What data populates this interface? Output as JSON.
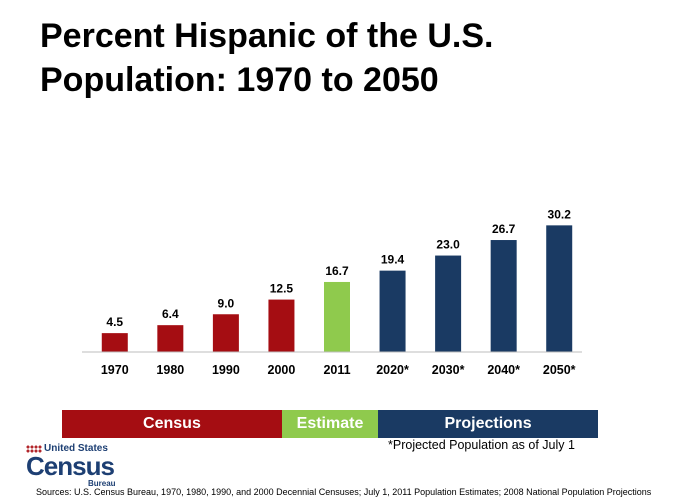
{
  "title": "Percent Hispanic of the U.S. Population: 1970 to 2050",
  "chart_data": {
    "type": "bar",
    "categories": [
      "1970",
      "1980",
      "1990",
      "2000",
      "2011",
      "2020*",
      "2030*",
      "2040*",
      "2050*"
    ],
    "values": [
      4.5,
      6.4,
      9.0,
      12.5,
      16.7,
      19.4,
      23.0,
      26.7,
      30.2
    ],
    "data_labels": [
      "4.5",
      "6.4",
      "9.0",
      "12.5",
      "16.7",
      "19.4",
      "23.0",
      "26.7",
      "30.2"
    ],
    "bar_colors": [
      "#a50d12",
      "#a50d12",
      "#a50d12",
      "#a50d12",
      "#8fca4d",
      "#1a3a63",
      "#1a3a63",
      "#1a3a63",
      "#1a3a63"
    ],
    "ylim": [
      0,
      31
    ],
    "grid": false,
    "title": "Percent Hispanic of the U.S. Population: 1970 to 2050",
    "xlabel": "",
    "ylabel": ""
  },
  "legend": [
    {
      "label": "Census",
      "color": "#a50d12",
      "span": 4
    },
    {
      "label": "Estimate",
      "color": "#8fca4d",
      "span": 1.75
    },
    {
      "label": "Projections",
      "color": "#1a3a63",
      "span": 4
    }
  ],
  "footnote": "*Projected Population as of July 1",
  "logo": {
    "top": "United States",
    "main": "Census",
    "sub": "Bureau"
  },
  "sources": "Sources: U.S. Census Bureau, 1970, 1980, 1990, and 2000 Decennial Censuses; July 1, 2011 Population Estimates; 2008 National Population Projections"
}
